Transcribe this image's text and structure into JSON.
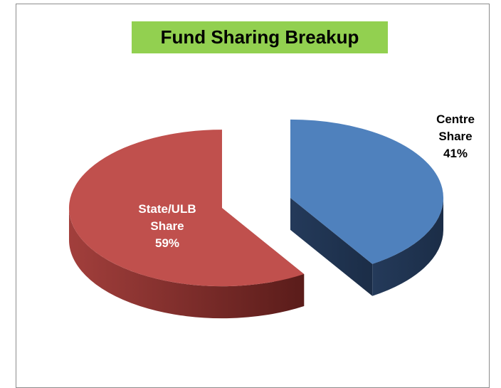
{
  "chart_data": {
    "type": "pie",
    "title": "Fund Sharing Breakup",
    "categories": [
      "Centre Share",
      "State/ULB Share"
    ],
    "values": [
      41,
      59
    ],
    "value_labels": [
      "41%",
      "59%"
    ],
    "colors": [
      "#4f81bd",
      "#c0504d"
    ]
  }
}
